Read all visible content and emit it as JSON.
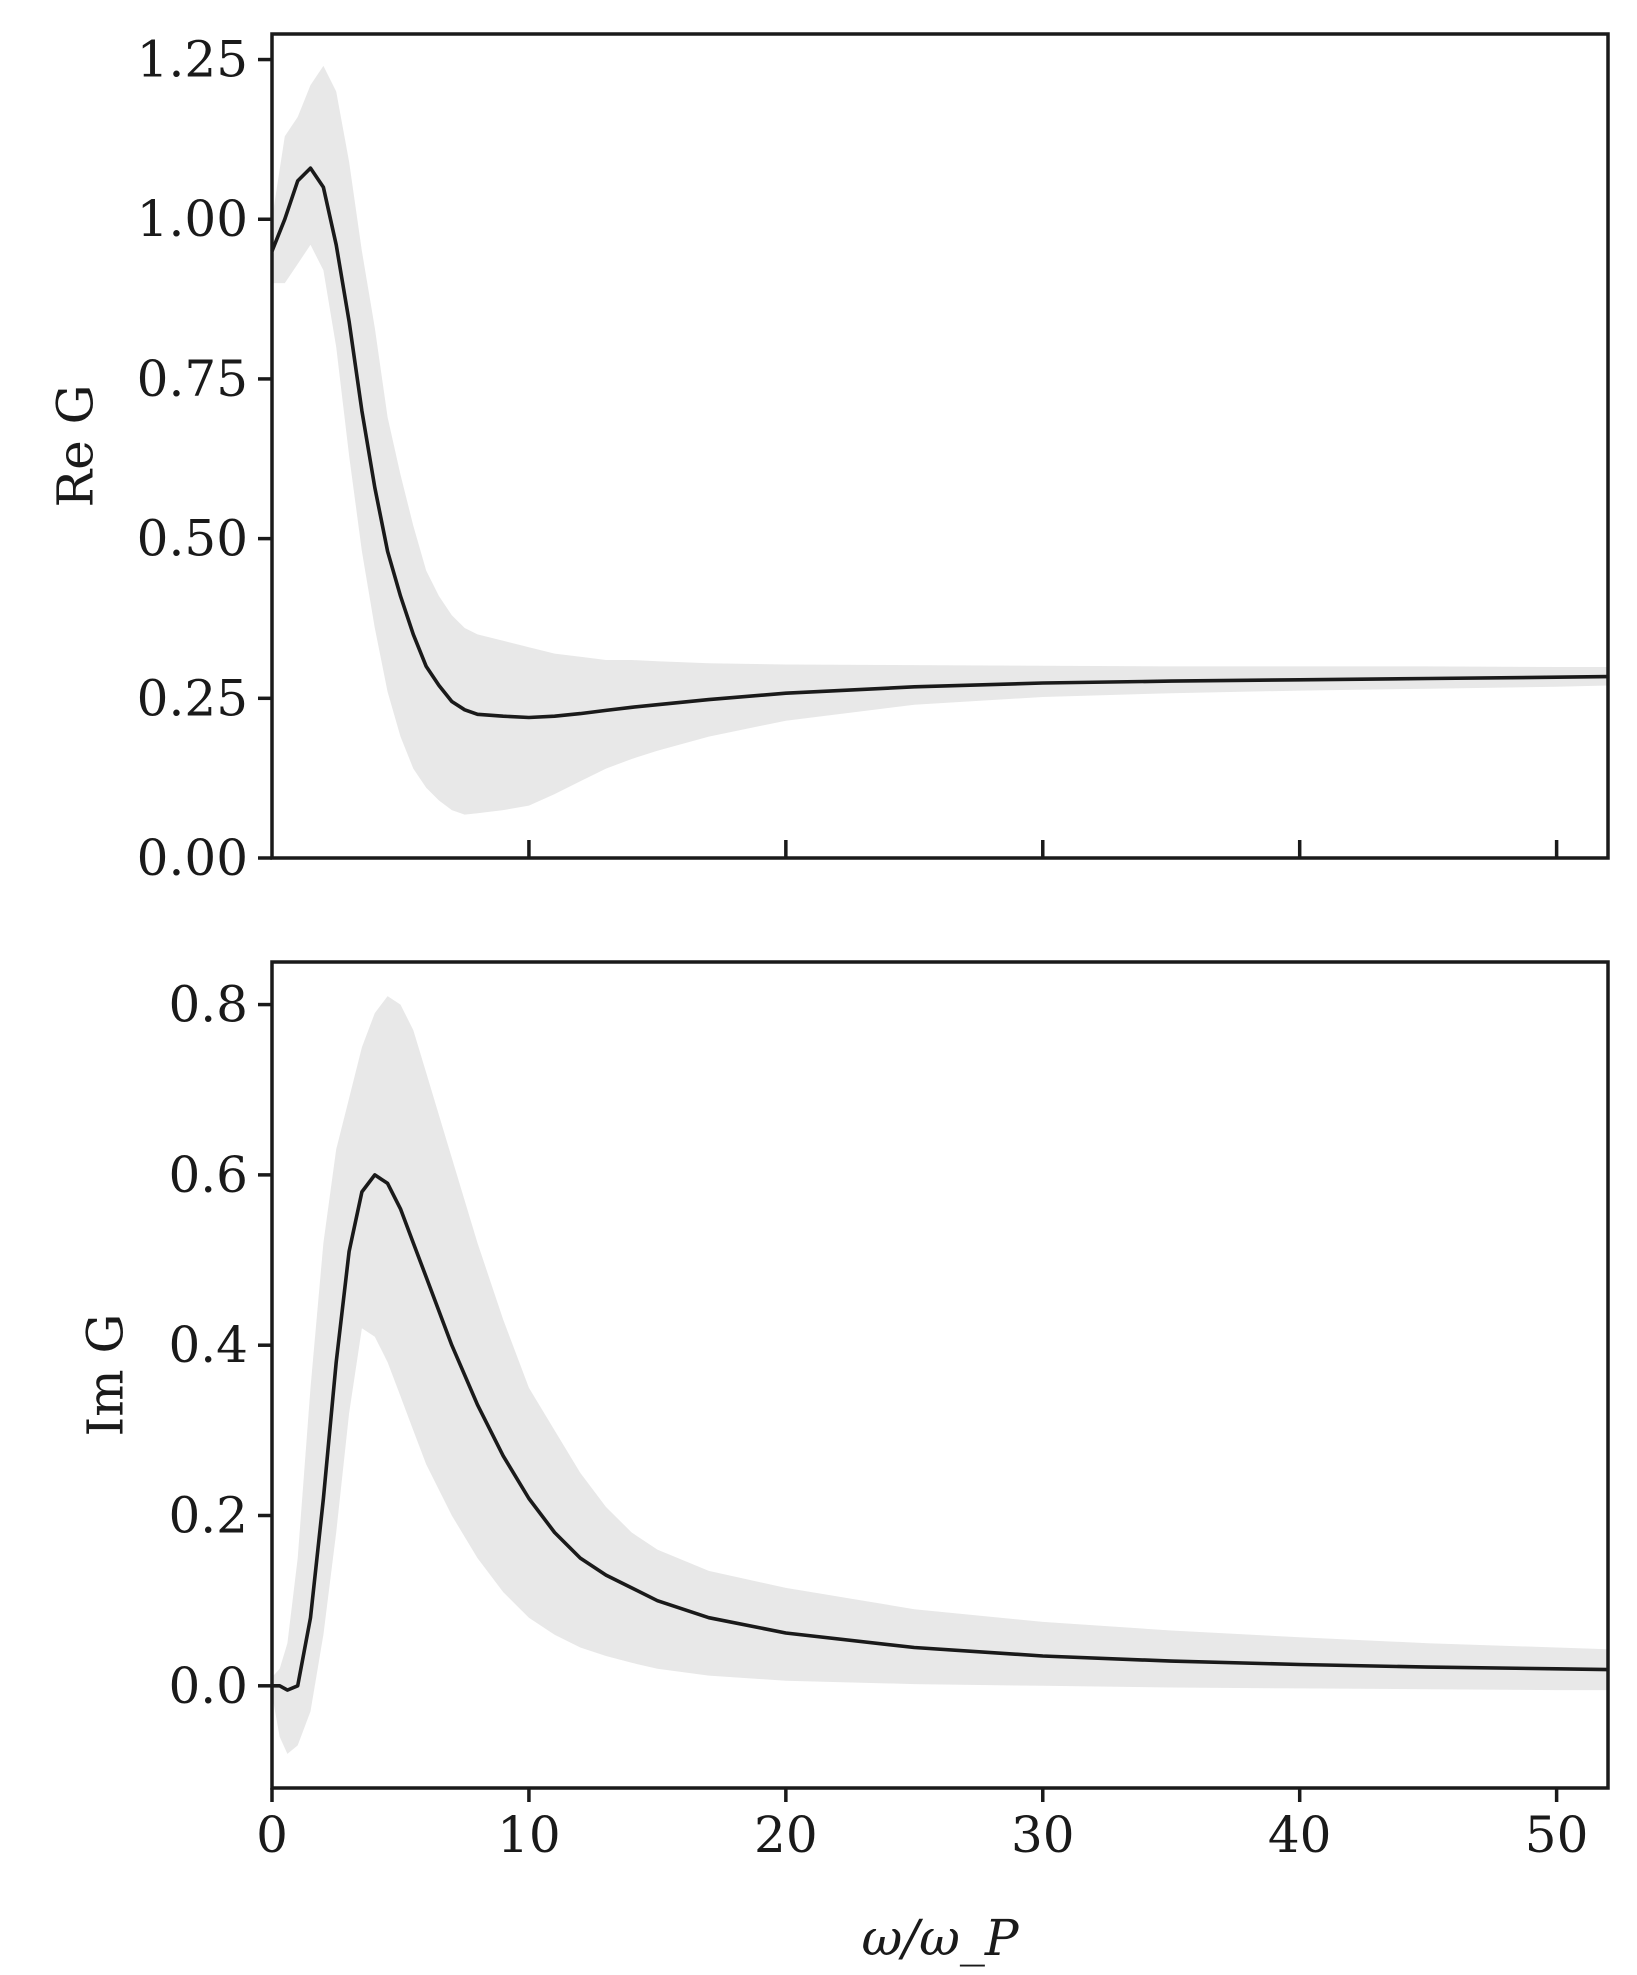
{
  "chart_data": [
    {
      "type": "line",
      "ylabel": "Re G",
      "xlabel": "",
      "xlim": [
        0,
        52
      ],
      "ylim": [
        0,
        1.29
      ],
      "x_ticks": [
        10,
        20,
        30,
        40,
        50
      ],
      "y_ticks": [
        "0.00",
        "0.25",
        "0.50",
        "0.75",
        "1.00",
        "1.25"
      ],
      "x_tick_labels_shown": false,
      "grid": false,
      "series": [
        {
          "style": "black-line",
          "x": [
            0,
            0.5,
            1,
            1.5,
            2,
            2.5,
            3,
            3.5,
            4,
            4.5,
            5,
            5.5,
            6,
            6.5,
            7,
            7.5,
            8,
            9,
            10,
            11,
            12,
            13,
            14,
            15,
            17,
            20,
            25,
            30,
            35,
            40,
            45,
            50,
            52
          ],
          "y": [
            0.95,
            1.0,
            1.06,
            1.08,
            1.05,
            0.96,
            0.84,
            0.7,
            0.58,
            0.48,
            0.41,
            0.35,
            0.3,
            0.27,
            0.245,
            0.232,
            0.225,
            0.222,
            0.22,
            0.222,
            0.226,
            0.231,
            0.236,
            0.24,
            0.248,
            0.258,
            0.268,
            0.274,
            0.277,
            0.279,
            0.281,
            0.283,
            0.284
          ]
        }
      ],
      "band": {
        "x": [
          0,
          0.5,
          1,
          1.5,
          2,
          2.5,
          3,
          3.5,
          4,
          4.5,
          5,
          5.5,
          6,
          6.5,
          7,
          7.5,
          8,
          9,
          10,
          11,
          12,
          13,
          14,
          15,
          17,
          20,
          25,
          30,
          35,
          40,
          45,
          50,
          52
        ],
        "upper": [
          1.0,
          1.13,
          1.16,
          1.21,
          1.24,
          1.2,
          1.09,
          0.95,
          0.83,
          0.69,
          0.6,
          0.52,
          0.45,
          0.41,
          0.38,
          0.36,
          0.35,
          0.34,
          0.33,
          0.32,
          0.315,
          0.31,
          0.31,
          0.308,
          0.305,
          0.303,
          0.302,
          0.301,
          0.3,
          0.3,
          0.3,
          0.299,
          0.299
        ],
        "lower": [
          0.9,
          0.9,
          0.93,
          0.96,
          0.92,
          0.8,
          0.63,
          0.48,
          0.36,
          0.26,
          0.19,
          0.14,
          0.11,
          0.09,
          0.075,
          0.068,
          0.07,
          0.075,
          0.082,
          0.1,
          0.12,
          0.14,
          0.155,
          0.168,
          0.19,
          0.215,
          0.24,
          0.252,
          0.258,
          0.262,
          0.265,
          0.268,
          0.27
        ]
      }
    },
    {
      "type": "line",
      "ylabel": "Im G",
      "xlabel": "ω/ω_P",
      "xlim": [
        0,
        52
      ],
      "ylim": [
        -0.12,
        0.85
      ],
      "x_ticks": [
        "0",
        "10",
        "20",
        "30",
        "40",
        "50"
      ],
      "y_ticks": [
        "0.0",
        "0.2",
        "0.4",
        "0.6",
        "0.8"
      ],
      "grid": false,
      "series": [
        {
          "style": "black-line",
          "x": [
            0,
            0.3,
            0.6,
            1,
            1.5,
            2,
            2.5,
            3,
            3.5,
            4,
            4.5,
            5,
            5.5,
            6,
            7,
            8,
            9,
            10,
            11,
            12,
            13,
            14,
            15,
            17,
            20,
            25,
            30,
            35,
            40,
            45,
            50,
            52
          ],
          "y": [
            0.0,
            0.0,
            -0.005,
            0.0,
            0.08,
            0.22,
            0.38,
            0.51,
            0.58,
            0.6,
            0.59,
            0.56,
            0.52,
            0.48,
            0.4,
            0.33,
            0.27,
            0.22,
            0.18,
            0.15,
            0.13,
            0.115,
            0.1,
            0.08,
            0.062,
            0.045,
            0.035,
            0.029,
            0.025,
            0.022,
            0.02,
            0.019
          ]
        }
      ],
      "band": {
        "x": [
          0,
          0.3,
          0.6,
          1,
          1.5,
          2,
          2.5,
          3,
          3.5,
          4,
          4.5,
          5,
          5.5,
          6,
          7,
          8,
          9,
          10,
          11,
          12,
          13,
          14,
          15,
          17,
          20,
          25,
          30,
          35,
          40,
          45,
          50,
          52
        ],
        "upper": [
          0.01,
          0.02,
          0.05,
          0.15,
          0.35,
          0.52,
          0.63,
          0.69,
          0.75,
          0.79,
          0.81,
          0.8,
          0.77,
          0.72,
          0.62,
          0.52,
          0.43,
          0.35,
          0.3,
          0.25,
          0.21,
          0.18,
          0.16,
          0.135,
          0.115,
          0.09,
          0.075,
          0.065,
          0.057,
          0.05,
          0.045,
          0.043
        ],
        "lower": [
          -0.01,
          -0.06,
          -0.08,
          -0.07,
          -0.03,
          0.06,
          0.18,
          0.32,
          0.42,
          0.41,
          0.38,
          0.34,
          0.3,
          0.26,
          0.2,
          0.15,
          0.11,
          0.08,
          0.06,
          0.045,
          0.035,
          0.027,
          0.02,
          0.012,
          0.006,
          0.002,
          0.0,
          -0.002,
          -0.003,
          -0.004,
          -0.005,
          -0.005
        ]
      }
    }
  ]
}
